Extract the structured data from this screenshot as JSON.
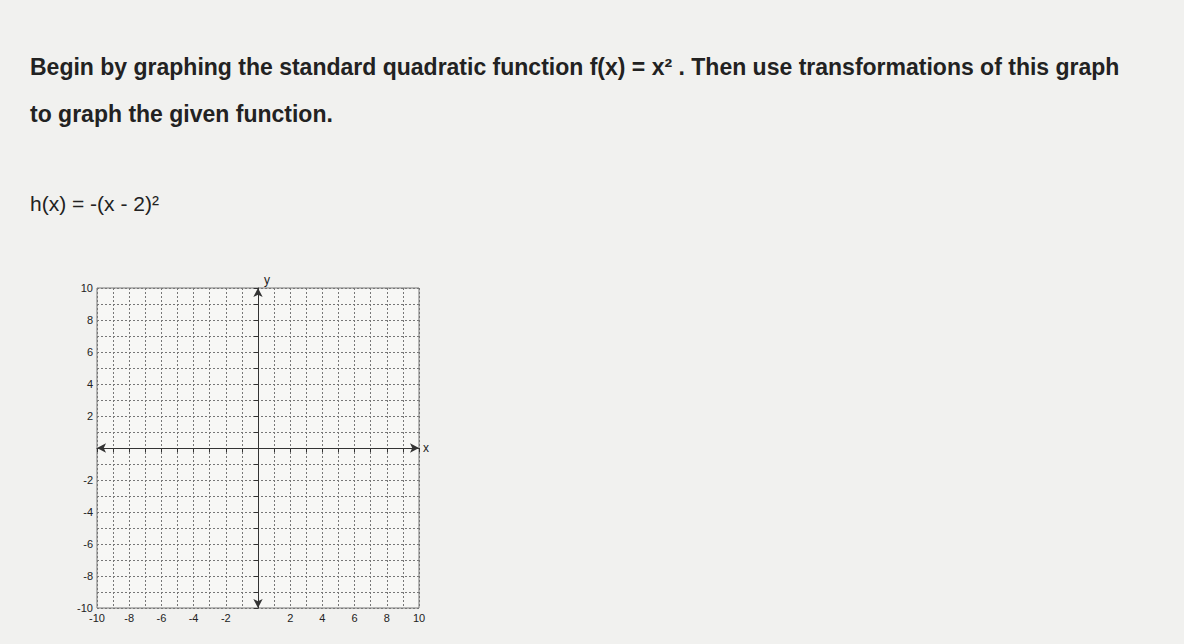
{
  "document": {
    "instructions": "Begin by graphing the standard quadratic function f(x) = x² . Then use transformations of this graph to graph the given function.",
    "function": "h(x) = -(x - 2)²"
  },
  "chart_data": {
    "type": "scatter",
    "x_label": "x",
    "y_label": "y",
    "series": [],
    "xlim": [
      -10,
      10
    ],
    "ylim": [
      -10,
      10
    ],
    "xticks": [
      -10,
      -8,
      -6,
      -4,
      -2,
      2,
      4,
      6,
      8,
      10
    ],
    "yticks": [
      -10,
      -8,
      -6,
      -4,
      -2,
      2,
      4,
      6,
      8,
      10
    ],
    "grid": true
  }
}
